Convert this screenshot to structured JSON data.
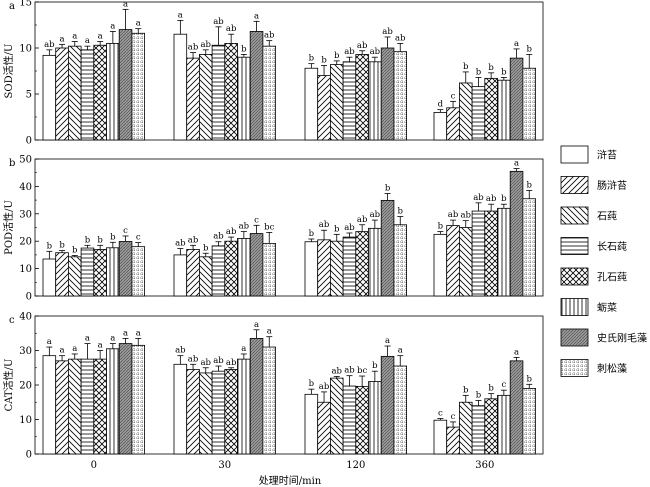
{
  "figure": {
    "xlabel": "处理时间/min",
    "categories": [
      "0",
      "30",
      "120",
      "360"
    ],
    "legend": {
      "placement": "right",
      "items": [
        {
          "label": "浒苔",
          "pattern": "solid"
        },
        {
          "label": "肠浒苔",
          "pattern": "fwd"
        },
        {
          "label": "石莼",
          "pattern": "back"
        },
        {
          "label": "长石莼",
          "pattern": "horiz"
        },
        {
          "label": "孔石莼",
          "pattern": "cross"
        },
        {
          "label": "蛎菜",
          "pattern": "vert"
        },
        {
          "label": "史氏刚毛藻",
          "pattern": "dense"
        },
        {
          "label": "刺松藻",
          "pattern": "grid"
        }
      ]
    }
  },
  "chart_data": [
    {
      "type": "bar",
      "panel_label": "a",
      "ylabel": "SOD活性/U",
      "ylim": [
        0,
        15
      ],
      "yticks": [
        0,
        5,
        10,
        15
      ],
      "categories": [
        "0",
        "30",
        "120",
        "360"
      ],
      "series": [
        {
          "name": "浒苔",
          "values": [
            9.2,
            11.5,
            7.8,
            3.0
          ],
          "errors": [
            0.6,
            1.5,
            0.5,
            0.3
          ],
          "letters": [
            "ab",
            "a",
            "b",
            "d"
          ]
        },
        {
          "name": "肠浒苔",
          "values": [
            10.0,
            8.9,
            7.0,
            3.5
          ],
          "errors": [
            0.4,
            0.6,
            1.1,
            0.7
          ],
          "letters": [
            "a",
            "ab",
            "b",
            "c"
          ]
        },
        {
          "name": "石莼",
          "values": [
            10.2,
            9.3,
            8.2,
            6.2
          ],
          "errors": [
            0.5,
            0.5,
            0.4,
            1.2
          ],
          "letters": [
            "a",
            "ab",
            "b",
            "b"
          ]
        },
        {
          "name": "长石莼",
          "values": [
            9.8,
            10.3,
            8.5,
            5.8
          ],
          "errors": [
            0.4,
            2.0,
            0.5,
            1.0
          ],
          "letters": [
            "a",
            "ab",
            "ab",
            "b"
          ]
        },
        {
          "name": "孔石莼",
          "values": [
            10.3,
            10.5,
            9.3,
            6.7
          ],
          "errors": [
            0.4,
            1.0,
            0.4,
            0.6
          ],
          "letters": [
            "a",
            "ab",
            "ab",
            "b"
          ]
        },
        {
          "name": "蛎菜",
          "values": [
            10.5,
            9.0,
            8.5,
            6.5
          ],
          "errors": [
            1.3,
            0.3,
            0.5,
            0.3
          ],
          "letters": [
            "a",
            "b",
            "ab",
            "b"
          ]
        },
        {
          "name": "史氏刚毛藻",
          "values": [
            12.0,
            11.8,
            10.0,
            8.9
          ],
          "errors": [
            2.2,
            1.1,
            1.2,
            1.0
          ],
          "letters": [
            "a",
            "a",
            "ab",
            "a"
          ]
        },
        {
          "name": "刺松藻",
          "values": [
            11.6,
            10.2,
            9.6,
            7.8
          ],
          "errors": [
            0.5,
            0.6,
            0.9,
            1.5
          ],
          "letters": [
            "a",
            "ab",
            "ab",
            "b"
          ]
        }
      ]
    },
    {
      "type": "bar",
      "panel_label": "b",
      "ylabel": "POD活性/U",
      "ylim": [
        0,
        50
      ],
      "yticks": [
        0,
        10,
        20,
        30,
        40,
        50
      ],
      "categories": [
        "0",
        "30",
        "120",
        "360"
      ],
      "series": [
        {
          "name": "浒苔",
          "values": [
            13.5,
            15.0,
            19.8,
            22.5
          ],
          "errors": [
            2.8,
            2.3,
            1.0,
            1.0
          ],
          "letters": [
            "b",
            "ab",
            "b",
            "b"
          ]
        },
        {
          "name": "肠浒苔",
          "values": [
            15.8,
            17.0,
            20.5,
            25.7
          ],
          "errors": [
            0.8,
            1.5,
            3.5,
            2.0
          ],
          "letters": [
            "b",
            "ab",
            "ab",
            "ab"
          ]
        },
        {
          "name": "石莼",
          "values": [
            14.3,
            14.3,
            20.0,
            25.0
          ],
          "errors": [
            0.5,
            1.3,
            2.5,
            2.5
          ],
          "letters": [
            "b",
            "b",
            "b",
            "ab"
          ]
        },
        {
          "name": "长石莼",
          "values": [
            17.5,
            18.3,
            21.5,
            31.0
          ],
          "errors": [
            1.0,
            1.5,
            1.5,
            3.0
          ],
          "letters": [
            "b",
            "ab",
            "ab",
            "ab"
          ]
        },
        {
          "name": "孔石莼",
          "values": [
            17.0,
            20.0,
            23.5,
            31.0
          ],
          "errors": [
            1.5,
            1.5,
            2.5,
            2.5
          ],
          "letters": [
            "b",
            "ab",
            "ab",
            "ab"
          ]
        },
        {
          "name": "蛎菜",
          "values": [
            17.6,
            21.0,
            24.7,
            32.0
          ],
          "errors": [
            2.0,
            2.5,
            3.0,
            1.5
          ],
          "letters": [
            "b",
            "ab",
            "ab",
            "b"
          ]
        },
        {
          "name": "史氏刚毛藻",
          "values": [
            19.9,
            22.8,
            34.9,
            45.5
          ],
          "errors": [
            2.0,
            3.0,
            2.5,
            1.0
          ],
          "letters": [
            "c",
            "c",
            "b",
            "a"
          ]
        },
        {
          "name": "刺松藻",
          "values": [
            18.0,
            19.2,
            26.0,
            35.5
          ],
          "errors": [
            1.5,
            4.0,
            3.0,
            3.0
          ],
          "letters": [
            "c",
            "bc",
            "b",
            "b"
          ]
        }
      ]
    },
    {
      "type": "bar",
      "panel_label": "c",
      "ylabel": "CAT活性/U",
      "ylim": [
        0,
        40
      ],
      "yticks": [
        0,
        10,
        20,
        30,
        40
      ],
      "categories": [
        "0",
        "30",
        "120",
        "360"
      ],
      "series": [
        {
          "name": "浒苔",
          "values": [
            28.5,
            26.0,
            17.3,
            9.8
          ],
          "errors": [
            2.5,
            2.5,
            1.5,
            0.5
          ],
          "letters": [
            "a",
            "ab",
            "b",
            "c"
          ]
        },
        {
          "name": "肠浒苔",
          "values": [
            27.0,
            24.5,
            15.0,
            7.8
          ],
          "errors": [
            1.5,
            1.5,
            3.0,
            1.5
          ],
          "letters": [
            "a",
            "ab",
            "ab",
            "c"
          ]
        },
        {
          "name": "石莼",
          "values": [
            27.5,
            23.5,
            22.0,
            15.0
          ],
          "errors": [
            1.5,
            1.5,
            0.5,
            2.0
          ],
          "letters": [
            "a",
            "ab",
            "ab",
            "b"
          ]
        },
        {
          "name": "长石莼",
          "values": [
            27.5,
            24.0,
            19.7,
            14.0
          ],
          "errors": [
            4.5,
            1.5,
            3.0,
            1.5
          ],
          "letters": [
            "a",
            "ab",
            "ab",
            "b"
          ]
        },
        {
          "name": "孔石莼",
          "values": [
            27.5,
            24.5,
            19.6,
            16.0
          ],
          "errors": [
            2.5,
            0.5,
            3.0,
            1.5
          ],
          "letters": [
            "a",
            "ab",
            "bc",
            "b"
          ]
        },
        {
          "name": "蛎菜",
          "values": [
            30.5,
            27.5,
            21.0,
            17.0
          ],
          "errors": [
            1.5,
            1.5,
            3.0,
            1.5
          ],
          "letters": [
            "a",
            "a",
            "b",
            "c"
          ]
        },
        {
          "name": "史氏刚毛藻",
          "values": [
            32.0,
            33.5,
            28.3,
            27.0
          ],
          "errors": [
            1.5,
            2.5,
            3.0,
            1.0
          ],
          "letters": [
            "a",
            "a",
            "a",
            "a"
          ]
        },
        {
          "name": "刺松藻",
          "values": [
            31.5,
            31.0,
            25.5,
            19.0
          ],
          "errors": [
            2.0,
            3.0,
            3.0,
            1.2
          ],
          "letters": [
            "a",
            "a",
            "a",
            "b"
          ]
        }
      ]
    }
  ]
}
